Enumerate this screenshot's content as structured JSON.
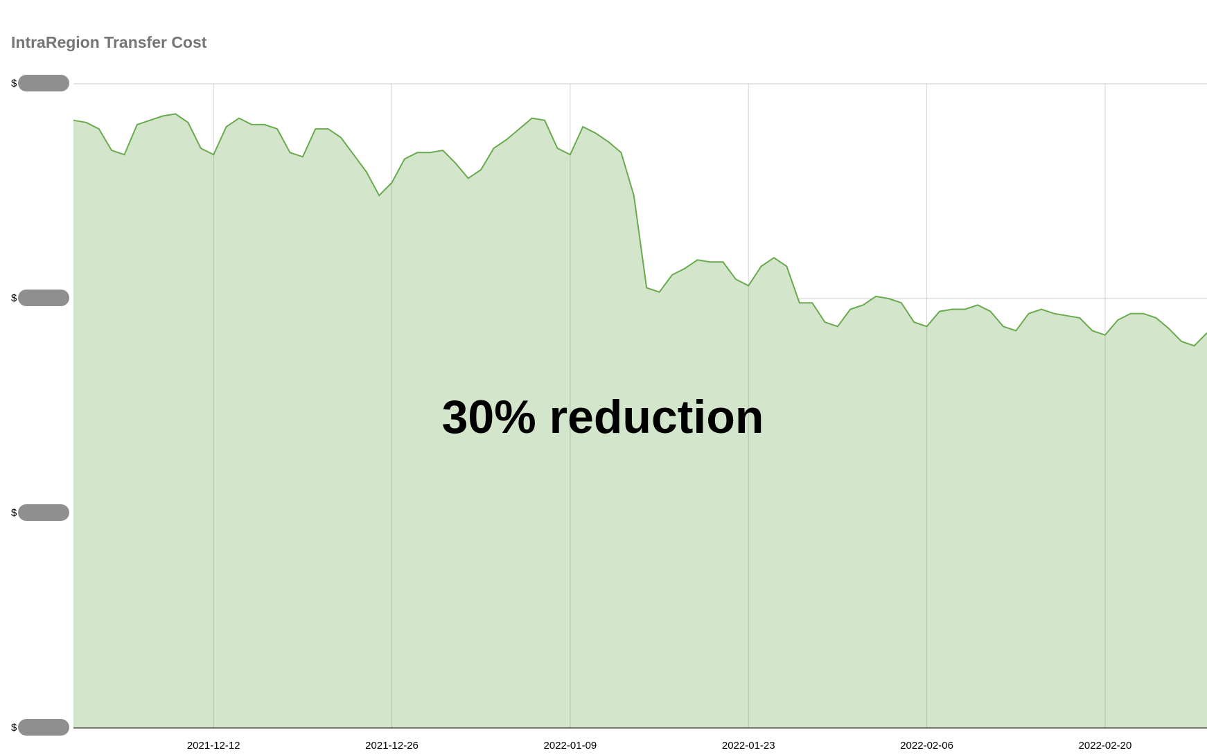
{
  "chart_data": {
    "type": "area",
    "title": "IntraRegion Transfer Cost",
    "annotation": "30% reduction",
    "xlabel": "",
    "ylabel": "",
    "color_line": "#6aaa4f",
    "color_fill": "#d3e6cb",
    "grid": true,
    "y_axis": {
      "min": 0,
      "max": 3,
      "tick_values": [
        0,
        1,
        2,
        3
      ],
      "tick_prefix": "$",
      "tick_labels_redacted": true
    },
    "x_ticks": [
      "2021-12-12",
      "2021-12-26",
      "2022-01-09",
      "2022-01-23",
      "2022-02-06",
      "2022-02-20"
    ],
    "x_start": "2021-12-01",
    "x_end": "2022-02-28",
    "dates": [
      "2021-12-01",
      "2021-12-02",
      "2021-12-03",
      "2021-12-04",
      "2021-12-05",
      "2021-12-06",
      "2021-12-07",
      "2021-12-08",
      "2021-12-09",
      "2021-12-10",
      "2021-12-11",
      "2021-12-12",
      "2021-12-13",
      "2021-12-14",
      "2021-12-15",
      "2021-12-16",
      "2021-12-17",
      "2021-12-18",
      "2021-12-19",
      "2021-12-20",
      "2021-12-21",
      "2021-12-22",
      "2021-12-23",
      "2021-12-24",
      "2021-12-25",
      "2021-12-26",
      "2021-12-27",
      "2021-12-28",
      "2021-12-29",
      "2021-12-30",
      "2021-12-31",
      "2022-01-01",
      "2022-01-02",
      "2022-01-03",
      "2022-01-04",
      "2022-01-05",
      "2022-01-06",
      "2022-01-07",
      "2022-01-08",
      "2022-01-09",
      "2022-01-10",
      "2022-01-11",
      "2022-01-12",
      "2022-01-13",
      "2022-01-14",
      "2022-01-15",
      "2022-01-16",
      "2022-01-17",
      "2022-01-18",
      "2022-01-19",
      "2022-01-20",
      "2022-01-21",
      "2022-01-22",
      "2022-01-23",
      "2022-01-24",
      "2022-01-25",
      "2022-01-26",
      "2022-01-27",
      "2022-01-28",
      "2022-01-29",
      "2022-01-30",
      "2022-01-31",
      "2022-02-01",
      "2022-02-02",
      "2022-02-03",
      "2022-02-04",
      "2022-02-05",
      "2022-02-06",
      "2022-02-07",
      "2022-02-08",
      "2022-02-09",
      "2022-02-10",
      "2022-02-11",
      "2022-02-12",
      "2022-02-13",
      "2022-02-14",
      "2022-02-15",
      "2022-02-16",
      "2022-02-17",
      "2022-02-18",
      "2022-02-19",
      "2022-02-20",
      "2022-02-21",
      "2022-02-22",
      "2022-02-23",
      "2022-02-24",
      "2022-02-25",
      "2022-02-26",
      "2022-02-27",
      "2022-02-28"
    ],
    "values": [
      2.83,
      2.82,
      2.79,
      2.69,
      2.67,
      2.81,
      2.83,
      2.85,
      2.86,
      2.82,
      2.7,
      2.67,
      2.8,
      2.84,
      2.81,
      2.81,
      2.79,
      2.68,
      2.66,
      2.79,
      2.79,
      2.75,
      2.67,
      2.59,
      2.48,
      2.54,
      2.65,
      2.68,
      2.68,
      2.69,
      2.63,
      2.56,
      2.6,
      2.7,
      2.74,
      2.79,
      2.84,
      2.83,
      2.7,
      2.67,
      2.8,
      2.77,
      2.73,
      2.68,
      2.48,
      2.05,
      2.03,
      2.11,
      2.14,
      2.18,
      2.17,
      2.17,
      2.09,
      2.06,
      2.15,
      2.19,
      2.15,
      1.98,
      1.98,
      1.89,
      1.87,
      1.95,
      1.97,
      2.01,
      2.0,
      1.98,
      1.89,
      1.87,
      1.94,
      1.95,
      1.95,
      1.97,
      1.94,
      1.87,
      1.85,
      1.93,
      1.95,
      1.93,
      1.92,
      1.91,
      1.85,
      1.83,
      1.9,
      1.93,
      1.93,
      1.91,
      1.86,
      1.8,
      1.78,
      1.84
    ]
  }
}
